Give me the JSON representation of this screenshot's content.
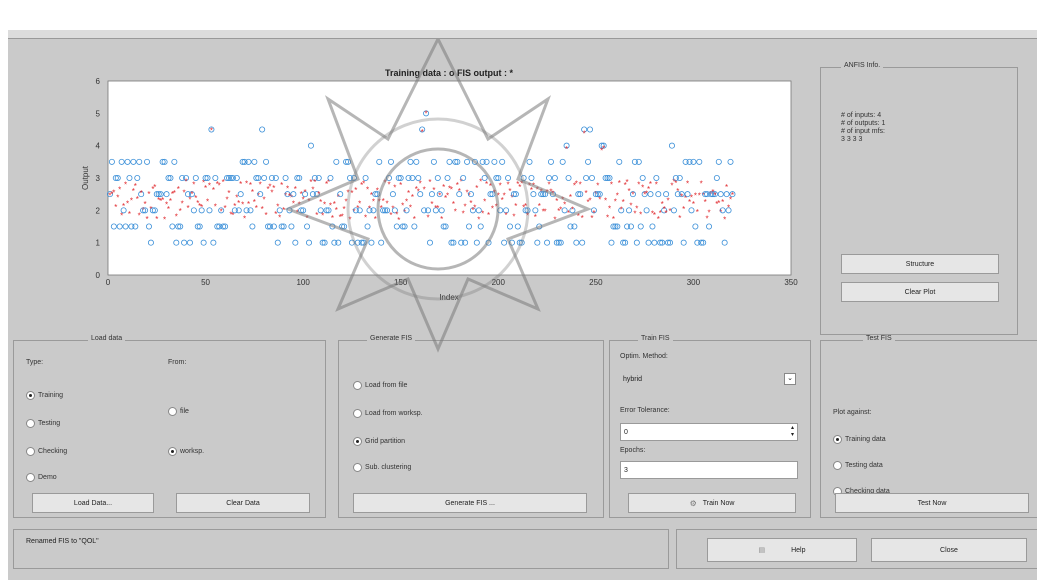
{
  "plot": {
    "title": "Training data : o   FIS output : *",
    "xlabel": "Index",
    "ylabel": "Output"
  },
  "chart_data": {
    "type": "scatter",
    "title": "Training data : o   FIS output : *",
    "xlabel": "Index",
    "ylabel": "Output",
    "xlim": [
      0,
      350
    ],
    "ylim": [
      0,
      6
    ],
    "xticks": [
      "0",
      "50",
      "100",
      "150",
      "200",
      "250",
      "300",
      "350"
    ],
    "yticks": [
      "0",
      "1",
      "2",
      "3",
      "4",
      "5",
      "6"
    ],
    "series": [
      {
        "name": "Training data",
        "marker": "o",
        "color": "#3a8fd8"
      },
      {
        "name": "FIS output",
        "marker": "*",
        "color": "#e0262b"
      }
    ],
    "n_points": 320,
    "value_range": [
      1,
      5
    ],
    "typical_range": [
      1.5,
      3
    ]
  },
  "anfis_info": {
    "legend": "ANFIS Info.",
    "lines": [
      "# of inputs: 4",
      "# of outputs: 1",
      "# of input mfs:",
      "3  3  3  3"
    ],
    "structure_btn": "Structure",
    "clear_plot_btn": "Clear Plot"
  },
  "load_data": {
    "legend": "Load data",
    "type_label": "Type:",
    "from_label": "From:",
    "types": [
      "Training",
      "Testing",
      "Checking",
      "Demo"
    ],
    "from": [
      "file",
      "worksp."
    ],
    "load_btn": "Load Data...",
    "clear_btn": "Clear Data"
  },
  "generate_fis": {
    "legend": "Generate FIS",
    "options": [
      "Load from file",
      "Load from worksp.",
      "Grid partition",
      "Sub. clustering"
    ],
    "btn": "Generate FIS ..."
  },
  "train_fis": {
    "legend": "Train FIS",
    "method_label": "Optim. Method:",
    "method_value": "hybrid",
    "tol_label": "Error Tolerance:",
    "tol_value": "0",
    "epochs_label": "Epochs:",
    "epochs_value": "3",
    "btn": "Train Now"
  },
  "test_fis": {
    "legend": "Test FIS",
    "plot_against": "Plot against:",
    "options": [
      "Training data",
      "Testing data",
      "Checking data"
    ],
    "btn": "Test Now"
  },
  "status": {
    "message": "Renamed FIS to \"QOL\"",
    "help_btn": "Help",
    "close_btn": "Close"
  },
  "colors": {
    "training": "#3a8fd8",
    "fis": "#e0262b",
    "background": "#cacaca"
  }
}
